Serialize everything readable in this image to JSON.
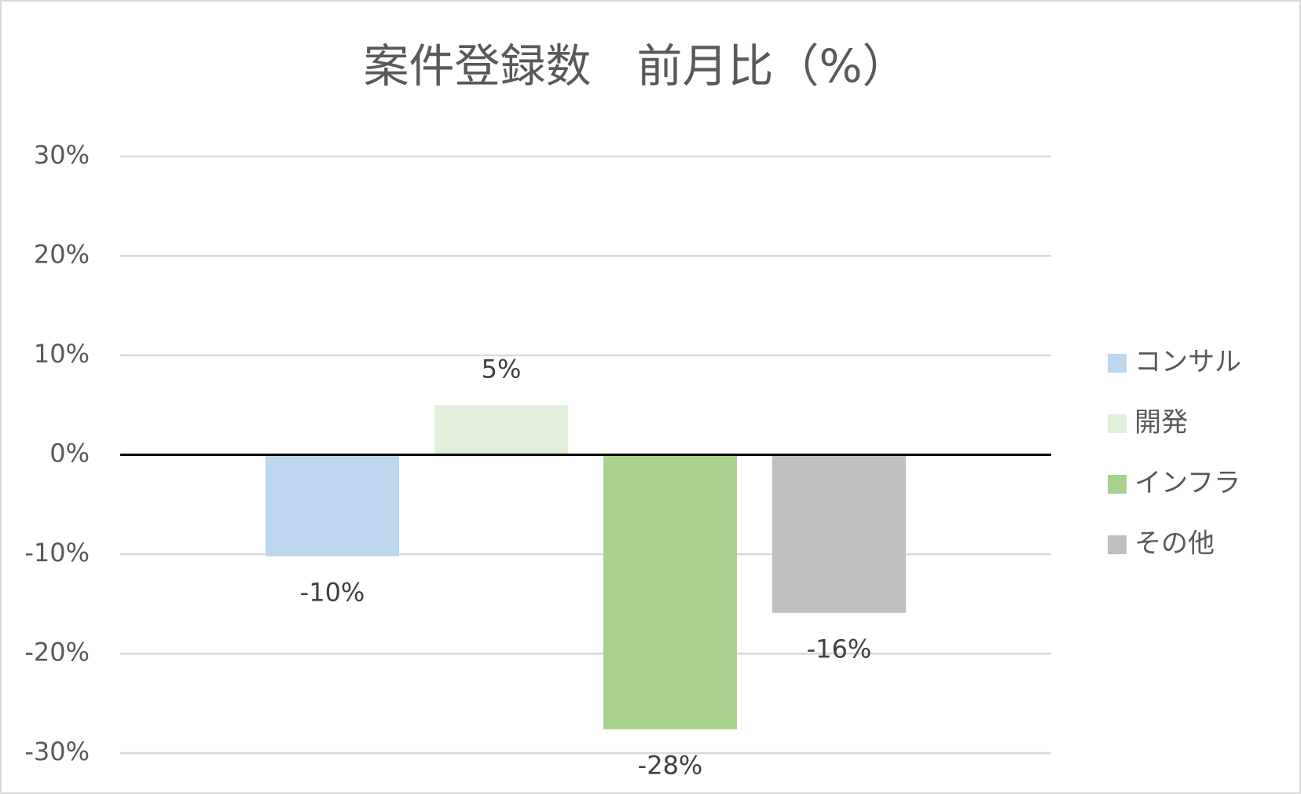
{
  "chart_data": {
    "type": "bar",
    "title": "案件登録数　前月比（%）",
    "categories": [
      null
    ],
    "series": [
      {
        "name": "コンサル",
        "color": "#bdd7ee",
        "values": [
          -10.2
        ],
        "value_labels": [
          "-10%"
        ]
      },
      {
        "name": "開発",
        "color": "#e2efda",
        "values": [
          5
        ],
        "value_labels": [
          "5%"
        ]
      },
      {
        "name": "インフラ",
        "color": "#a9d18e",
        "values": [
          -27.6
        ],
        "value_labels": [
          "-28%"
        ]
      },
      {
        "name": "その他",
        "color": "#bfbfbf",
        "values": [
          -15.9
        ],
        "value_labels": [
          "-16%"
        ]
      }
    ],
    "ylim": [
      -30,
      30
    ],
    "yticks": [
      {
        "value": -30,
        "label": "-30%"
      },
      {
        "value": -20,
        "label": "-20%"
      },
      {
        "value": -10,
        "label": "-10%"
      },
      {
        "value": 0,
        "label": "0%"
      },
      {
        "value": 10,
        "label": "10%"
      },
      {
        "value": 20,
        "label": "20%"
      },
      {
        "value": 30,
        "label": "30%"
      }
    ],
    "grid": true,
    "legend": "right"
  }
}
